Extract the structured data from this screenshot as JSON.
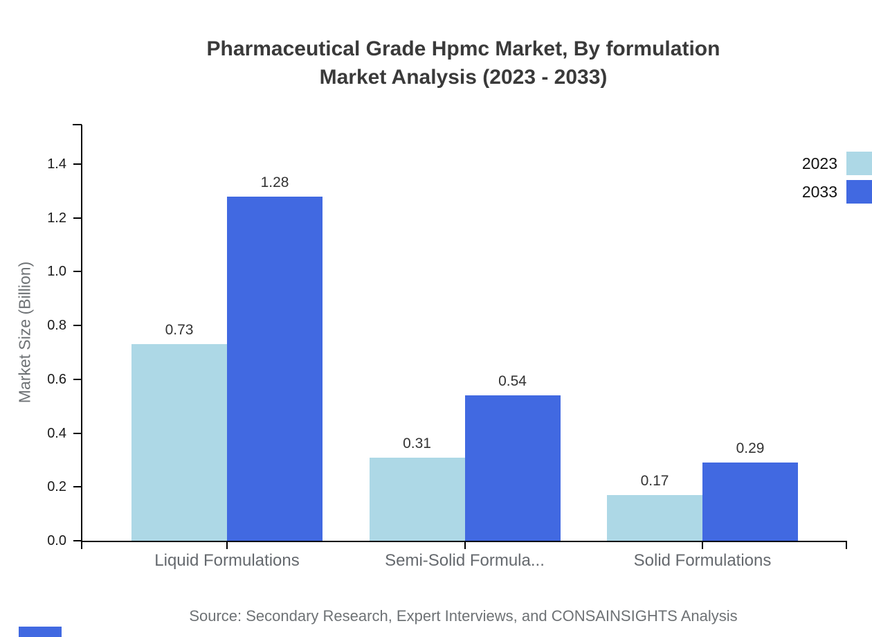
{
  "title": {
    "line1": "Pharmaceutical Grade Hpmc Market, By formulation",
    "line2": "Market Analysis (2023 - 2033)"
  },
  "chart_data": {
    "type": "bar",
    "categories": [
      "Liquid Formulations",
      "Semi-Solid Formula...",
      "Solid Formulations"
    ],
    "series": [
      {
        "name": "2023",
        "color": "#ADD8E6",
        "values": [
          0.73,
          0.31,
          0.17
        ]
      },
      {
        "name": "2033",
        "color": "#4169E1",
        "values": [
          1.28,
          0.54,
          0.29
        ]
      }
    ],
    "title": "Pharmaceutical Grade Hpmc Market, By formulation Market Analysis (2023 - 2033)",
    "xlabel": "",
    "ylabel": "Market Size (Billion)",
    "ylim": [
      0,
      1.4
    ],
    "yticks": [
      0,
      0.2,
      0.4,
      0.6,
      0.8,
      1.0,
      1.2,
      1.4
    ],
    "grid": false,
    "legend_position": "top-right",
    "value_labels": true
  },
  "footer": {
    "source": "Source: Secondary Research, Expert Interviews, and CONSAINSIGHTS Analysis"
  },
  "brand": {
    "color": "#4169E1"
  }
}
